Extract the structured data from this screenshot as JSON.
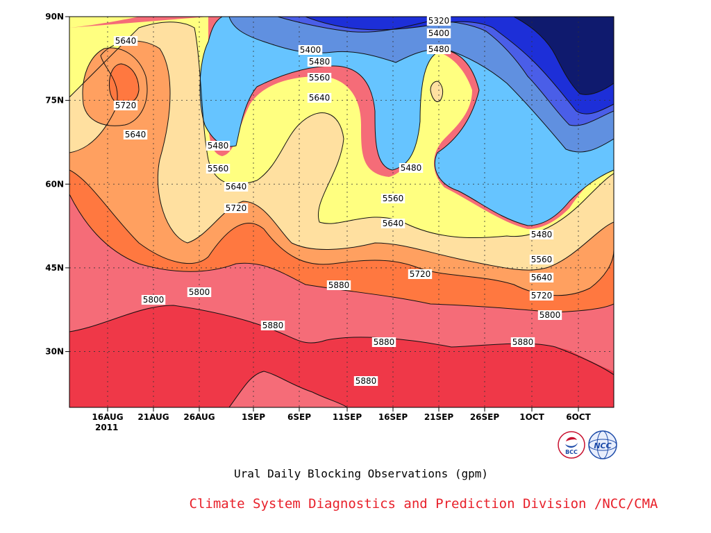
{
  "chart_data": {
    "type": "contour",
    "title": "Ural Daily Blocking Observations (gpm)",
    "credit": "Climate System Diagnostics and Prediction Division /NCC/CMA",
    "year_label": "2011",
    "x_ticks": [
      "16AUG",
      "21AUG",
      "26AUG",
      "1SEP",
      "6SEP",
      "11SEP",
      "16SEP",
      "21SEP",
      "26SEP",
      "1OCT",
      "6OCT"
    ],
    "y_ticks": [
      "30N",
      "45N",
      "60N",
      "75N",
      "90N"
    ],
    "ylim": [
      20,
      90
    ],
    "grid": true,
    "levels": [
      5320,
      5400,
      5480,
      5560,
      5640,
      5720,
      5800,
      5880
    ],
    "contour_labels": [
      "5320",
      "5400",
      "5480",
      "5400",
      "5480",
      "5560",
      "5640",
      "5640",
      "5720",
      "5640",
      "5480",
      "5560",
      "5640",
      "5720",
      "5480",
      "5560",
      "5640",
      "5720",
      "5480",
      "5560",
      "5640",
      "5720",
      "5800",
      "5800",
      "5880",
      "5800",
      "5880",
      "5880",
      "5880",
      "5880"
    ],
    "fill_colors": {
      "lt5320": "#0f1a6e",
      "5320": "#1d2fd8",
      "5400": "#4a5ee8",
      "5480": "#6090e0",
      "5480b": "#66c4ff",
      "5560": "#ffff80",
      "5640": "#ffe0a0",
      "5720": "#ffa060",
      "5800": "#ff7840",
      "5880": "#f56c78",
      "gt5880": "#ef3848"
    }
  },
  "logos": {
    "bcc": "BCC",
    "ncc": "NCC"
  }
}
